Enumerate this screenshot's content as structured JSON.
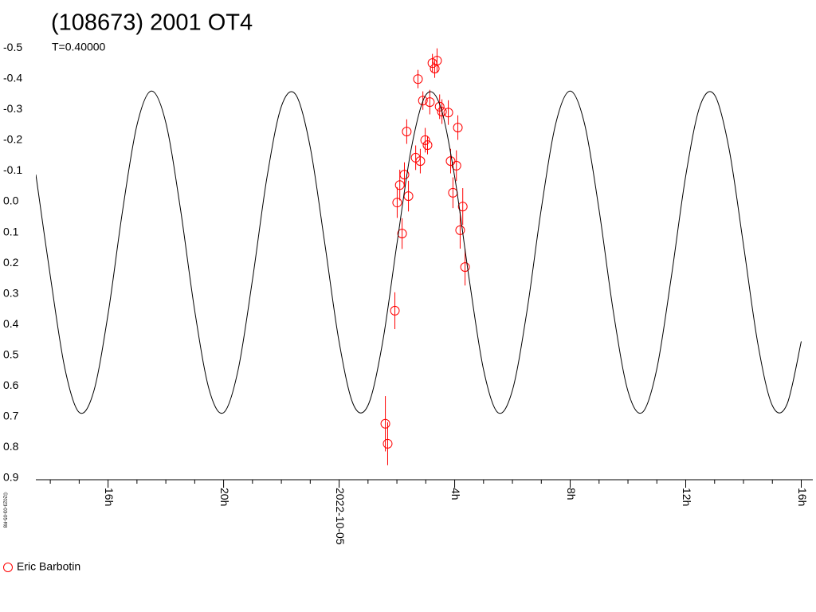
{
  "chart_data": {
    "type": "scatter",
    "title": "(108673) 2001 OT4",
    "subtitle": "T=0.40000",
    "footnote": "©2023-03-05-R8",
    "xlim": [
      -10.5,
      16.4
    ],
    "ylim": [
      0.9,
      -0.55
    ],
    "xticks": [
      {
        "value": -8,
        "label": "16h"
      },
      {
        "value": -4,
        "label": "20h"
      },
      {
        "value": 0,
        "label": "2022-10-05"
      },
      {
        "value": 4,
        "label": "4h"
      },
      {
        "value": 8,
        "label": "8h"
      },
      {
        "value": 12,
        "label": "12h"
      },
      {
        "value": 16,
        "label": "16h"
      }
    ],
    "xticks_minor": [
      -10,
      -9,
      -7,
      -6,
      -5,
      -3,
      -2,
      -1,
      1,
      2,
      3,
      5,
      6,
      7,
      9,
      10,
      11,
      13,
      14,
      15
    ],
    "yticks": [
      -0.5,
      -0.4,
      -0.3,
      -0.2,
      -0.1,
      {
        "value": 0,
        "label": "0.0"
      },
      0.1,
      0.2,
      0.3,
      0.4,
      0.5,
      0.6,
      0.7,
      0.8,
      0.9
    ],
    "series": [
      {
        "name": "Eric Barbotin",
        "type": "scatter",
        "color": "#ff0000",
        "x": [
          1.6,
          1.68,
          1.93,
          2.01,
          2.1,
          2.18,
          2.26,
          2.34,
          2.4,
          2.65,
          2.73,
          2.81,
          2.9,
          2.98,
          3.06,
          3.14,
          3.23,
          3.31,
          3.39,
          3.48,
          3.56,
          3.78,
          3.86,
          3.94,
          4.06,
          4.11,
          4.19,
          4.28,
          4.36
        ],
        "values": [
          0.723,
          0.788,
          0.355,
          0.003,
          -0.054,
          0.104,
          -0.088,
          -0.228,
          -0.018,
          -0.143,
          -0.399,
          -0.132,
          -0.329,
          -0.2,
          -0.184,
          -0.324,
          -0.451,
          -0.433,
          -0.459,
          -0.309,
          -0.293,
          -0.29,
          -0.132,
          -0.029,
          -0.117,
          -0.241,
          0.093,
          0.016,
          0.213
        ],
        "errors": [
          0.09,
          0.07,
          0.06,
          0.05,
          0.05,
          0.05,
          0.04,
          0.04,
          0.05,
          0.04,
          0.03,
          0.04,
          0.03,
          0.04,
          0.03,
          0.04,
          0.03,
          0.03,
          0.04,
          0.04,
          0.04,
          0.04,
          0.04,
          0.05,
          0.05,
          0.04,
          0.06,
          0.06,
          0.06
        ]
      },
      {
        "type": "line",
        "color": "#000000",
        "x": [
          -10.5,
          -10,
          -9.5,
          -9,
          -8.5,
          -8,
          -7.5,
          -7,
          -6.5,
          -6,
          -5.5,
          -5,
          -4.5,
          -4,
          -3.5,
          -3,
          -2.5,
          -2,
          -1.5,
          -1,
          -0.5,
          0,
          0.5,
          1,
          1.5,
          2,
          2.5,
          3,
          3.5,
          4,
          4.5,
          5,
          5.5,
          6,
          6.5,
          7,
          7.5,
          8,
          8.5,
          9,
          9.5,
          10,
          10.5,
          11,
          11.5,
          12,
          12.5,
          13,
          13.5,
          14,
          14.5,
          15,
          15.5,
          16
        ],
        "values": [
          -0.088,
          0.242,
          0.541,
          0.686,
          0.619,
          0.366,
          0.031,
          -0.249,
          -0.36,
          -0.257,
          0.02,
          0.355,
          0.612,
          0.687,
          0.549,
          0.254,
          -0.078,
          -0.31,
          -0.348,
          -0.177,
          0.134,
          0.457,
          0.662,
          0.663,
          0.461,
          0.138,
          -0.174,
          -0.347,
          -0.312,
          -0.081,
          0.25,
          0.547,
          0.687,
          0.614,
          0.358,
          0.023,
          -0.254,
          -0.36,
          -0.252,
          0.027,
          0.362,
          0.617,
          0.686,
          0.544,
          0.246,
          -0.084,
          -0.313,
          -0.347,
          -0.172,
          0.141,
          0.464,
          0.664,
          0.661,
          0.455
        ]
      }
    ]
  }
}
